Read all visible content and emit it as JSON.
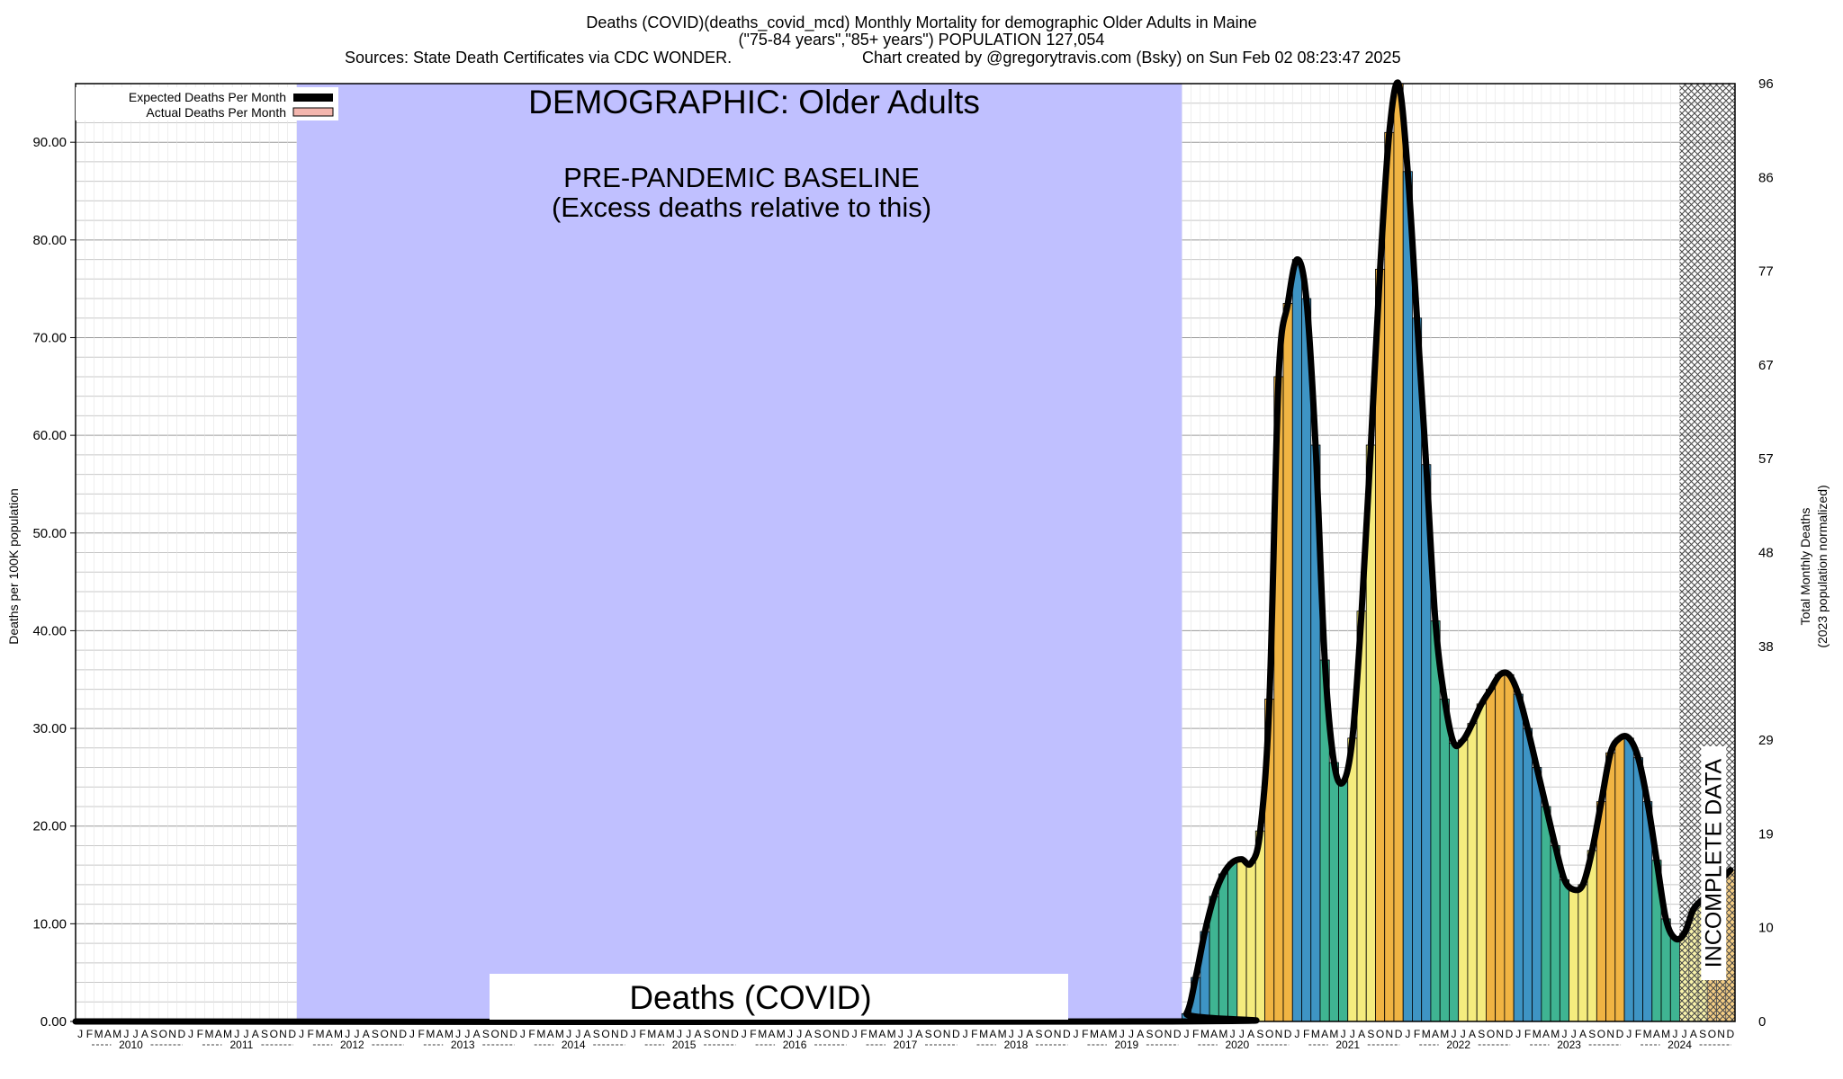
{
  "header": {
    "line1": "Deaths (COVID)(deaths_covid_mcd) Monthly Mortality for demographic Older Adults in Maine",
    "line2": "(\"75-84 years\",\"85+ years\") POPULATION 127,054",
    "line3_left": "Sources: State Death Certificates via CDC WONDER.",
    "line3_right": "Chart created by @gregorytravis.com (Bsky) on Sun Feb 02 08:23:47 2025"
  },
  "annotations": {
    "demographic": "DEMOGRAPHIC: Older Adults",
    "baseline_title": "PRE-PANDEMIC BASELINE",
    "baseline_sub": "(Excess deaths relative to this)",
    "cause_label": "Deaths (COVID)",
    "incomplete": "INCOMPLETE DATA"
  },
  "legend": {
    "expected": "Expected Deaths Per Month",
    "actual": "Actual Deaths Per Month"
  },
  "colors": {
    "baseline_band": "#c0c0ff",
    "expected_line": "#000000",
    "actual_legend": "#f4b6ae",
    "bar_palette": [
      "#3e94c4",
      "#3fb492",
      "#f5ec7e",
      "#f0b443"
    ]
  },
  "chart_data": {
    "type": "bar",
    "ylabel": "Deaths per 100K population",
    "y2label_line1": "Total Monthly Deaths",
    "y2label_line2": "(2023 population normalized)",
    "ylim": [
      0,
      96
    ],
    "yticks": [
      "0.00",
      "10.00",
      "20.00",
      "30.00",
      "40.00",
      "50.00",
      "60.00",
      "70.00",
      "80.00",
      "90.00"
    ],
    "y2ticks": [
      "0",
      "10",
      "19",
      "29",
      "38",
      "48",
      "57",
      "67",
      "77",
      "86",
      "96"
    ],
    "month_letters": [
      "J",
      "F",
      "M",
      "A",
      "M",
      "J",
      "J",
      "A",
      "S",
      "O",
      "N",
      "D"
    ],
    "years": [
      "2010",
      "2011",
      "2012",
      "2013",
      "2014",
      "2015",
      "2016",
      "2017",
      "2018",
      "2019",
      "2020",
      "2021",
      "2022",
      "2023",
      "2024"
    ],
    "start_year": 2010,
    "baseline_range": [
      "2012-01",
      "2019-12"
    ],
    "incomplete_range": [
      "2024-07",
      "2024-12"
    ],
    "grid": true,
    "legend_position": "top-left",
    "actual_2020_2024": [
      0.8,
      4.5,
      9.2,
      12.8,
      15.1,
      16.3,
      16.6,
      16.2,
      19.5,
      33.0,
      66.0,
      73.5,
      78.0,
      74.0,
      59.0,
      37.0,
      26.5,
      24.5,
      29.0,
      42.0,
      59.0,
      77.0,
      91.0,
      96.0,
      87.0,
      72.0,
      57.0,
      41.0,
      33.0,
      28.5,
      28.8,
      30.5,
      32.5,
      34.0,
      35.5,
      35.5,
      33.5,
      30.0,
      26.0,
      22.0,
      18.0,
      14.5,
      13.5,
      14.0,
      17.5,
      22.5,
      27.5,
      29.0,
      29.0,
      27.0,
      22.5,
      16.5,
      10.5,
      8.5,
      9.0,
      11.5,
      12.5,
      13.5,
      14.5,
      15.5
    ]
  }
}
